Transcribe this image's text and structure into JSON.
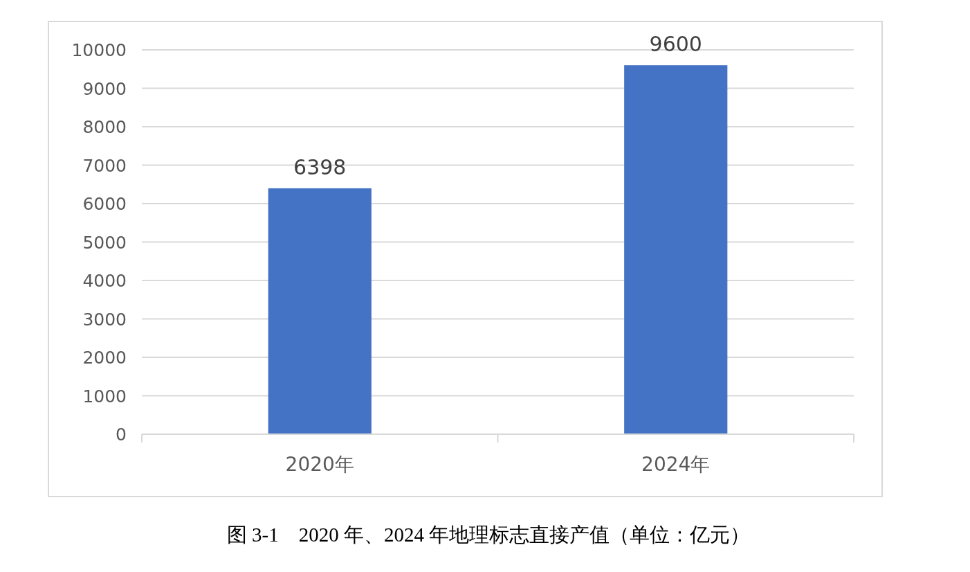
{
  "chart_data": {
    "type": "bar",
    "categories": [
      "2020年",
      "2024年"
    ],
    "values": [
      6398,
      9600
    ],
    "color": "#4472c4",
    "ylim": [
      0,
      10000
    ],
    "yticks": [
      0,
      1000,
      2000,
      3000,
      4000,
      5000,
      6000,
      7000,
      8000,
      9000,
      10000
    ],
    "grid": "y",
    "data_labels": true,
    "annotations": [
      "图 3-1　2020 年、2024 年地理标志直接产值（单位：亿元）"
    ]
  }
}
